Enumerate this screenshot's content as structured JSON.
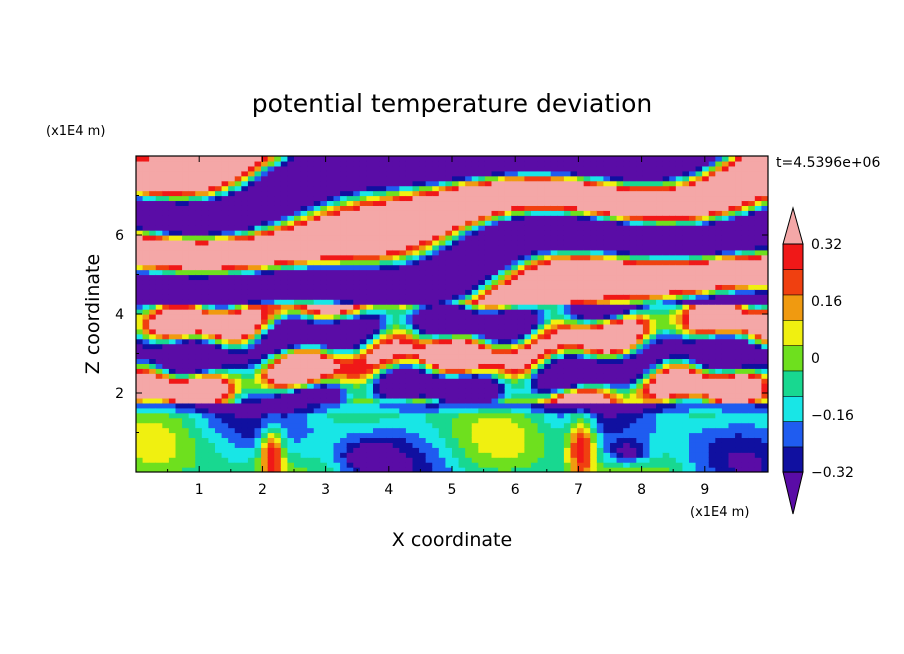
{
  "chart_data": {
    "type": "heatmap",
    "title": "potential temperature deviation",
    "xlabel": "X coordinate",
    "ylabel": "Z coordinate",
    "x_unit": "(x1E4 m)",
    "y_unit": "(x1E4 m)",
    "time_label": "t=4.5396e+06",
    "xlim": [
      0,
      10
    ],
    "ylim": [
      0,
      8
    ],
    "x_ticks": [
      "1",
      "2",
      "3",
      "4",
      "5",
      "6",
      "7",
      "8",
      "9"
    ],
    "y_ticks": [
      "2",
      "4",
      "6"
    ],
    "colorbar": {
      "levels": [
        -0.4,
        -0.32,
        -0.24,
        -0.16,
        -0.08,
        0,
        0.08,
        0.16,
        0.24,
        0.32,
        0.4
      ],
      "labels": [
        "0.32",
        "0.16",
        "0",
        "−0.16",
        "−0.32"
      ],
      "label_values": [
        0.32,
        0.16,
        0,
        -0.16,
        -0.32
      ],
      "colors": [
        "#5a0ca6",
        "#1010a0",
        "#1f5cf0",
        "#18e6e6",
        "#18d890",
        "#6ee01e",
        "#f0f010",
        "#f09a10",
        "#f04010",
        "#f01818",
        "#f4a7a7"
      ],
      "extend": "both"
    }
  }
}
